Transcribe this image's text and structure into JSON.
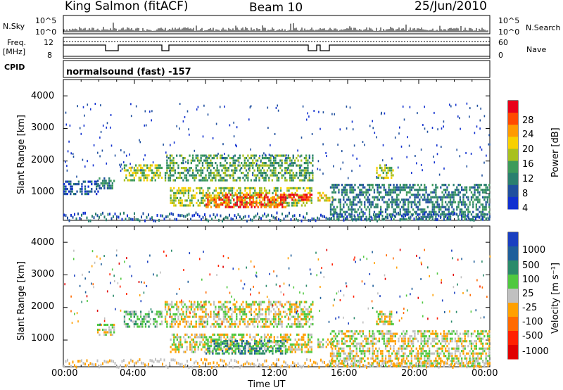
{
  "header": {
    "radar": "King Salmon (fitACF)",
    "beam": "Beam 10",
    "date": "25/Jun/2010"
  },
  "top_panels": {
    "nsky_label": "N.Sky",
    "nsky_ticks": [
      "10^5",
      "10^0"
    ],
    "nsearch_label": "N.Search",
    "nsearch_ticks": [
      "10^5",
      "10^0"
    ],
    "freq_label": "Freq.",
    "freq_unit": "[MHz]",
    "freq_ticks": [
      "12",
      "8"
    ],
    "nave_label": "Nave",
    "nave_ticks": [
      "60",
      "0"
    ],
    "cpid_label": "CPID",
    "cpid_text": "normalsound (fast) -157"
  },
  "chart_data": [
    {
      "type": "heatmap",
      "name": "power",
      "ylabel": "Slant Range [km]",
      "yticks": [
        "4000",
        "3000",
        "2000",
        "1000"
      ],
      "ylim": [
        180,
        4500
      ],
      "xlim": [
        0,
        24
      ],
      "colorbar": {
        "label": "Power [dB]",
        "ticks": [
          "28",
          "24",
          "20",
          "16",
          "12",
          "8",
          "4"
        ],
        "colors": [
          "#e8001a",
          "#ff4a00",
          "#ff9a00",
          "#f8d000",
          "#a8c020",
          "#3d9a5a",
          "#2a7f6e",
          "#1f4f9e",
          "#1030d0"
        ]
      },
      "echo_regions": [
        {
          "t": [
            1.9,
            2.9
          ],
          "r": [
            1150,
            1500
          ],
          "level": 2
        },
        {
          "t": [
            3.4,
            5.5
          ],
          "r": [
            1400,
            1900
          ],
          "level": 4
        },
        {
          "t": [
            5.7,
            14.0
          ],
          "r": [
            1400,
            2200
          ],
          "level": 3
        },
        {
          "t": [
            6.0,
            14.0
          ],
          "r": [
            600,
            1200
          ],
          "level": 4
        },
        {
          "t": [
            8.0,
            12.5
          ],
          "r": [
            600,
            1000
          ],
          "level": 7
        },
        {
          "t": [
            12.2,
            14.0
          ],
          "r": [
            800,
            1000
          ],
          "level": 8
        },
        {
          "t": [
            14.3,
            15.2
          ],
          "r": [
            750,
            1050
          ],
          "level": 5
        },
        {
          "t": [
            15.0,
            24.0
          ],
          "r": [
            180,
            1300
          ],
          "level": 2
        },
        {
          "t": [
            0.0,
            2.0
          ],
          "r": [
            1000,
            1400
          ],
          "level": 1
        },
        {
          "t": [
            17.6,
            18.6
          ],
          "r": [
            1500,
            1900
          ],
          "level": 4
        }
      ]
    },
    {
      "type": "heatmap",
      "name": "velocity",
      "xlabel": "Time UT",
      "ylabel": "Slant Range [km]",
      "yticks": [
        "4000",
        "3000",
        "2000",
        "1000"
      ],
      "xticks": [
        "00:00",
        "04:00",
        "08:00",
        "12:00",
        "16:00",
        "20:00",
        "00:00"
      ],
      "ylim": [
        180,
        4500
      ],
      "xlim": [
        0,
        24
      ],
      "colorbar": {
        "label": "Velocity [m s⁻¹]",
        "ticks": [
          "1000",
          "500",
          "100",
          "25",
          "-25",
          "-100",
          "-500",
          "-1000"
        ],
        "colors": [
          "#1a3fc0",
          "#1f5e9a",
          "#2a8a6a",
          "#50c840",
          "#c0c0c0",
          "#ffa000",
          "#ff6a00",
          "#ff2000",
          "#e00000"
        ]
      },
      "echo_regions": [
        {
          "t": [
            1.9,
            2.9
          ],
          "r": [
            1150,
            1500
          ],
          "level": 4
        },
        {
          "t": [
            3.4,
            5.5
          ],
          "r": [
            1400,
            1900
          ],
          "level": 5
        },
        {
          "t": [
            5.7,
            14.0
          ],
          "r": [
            1400,
            2200
          ],
          "level": 4
        },
        {
          "t": [
            6.0,
            14.0
          ],
          "r": [
            600,
            1200
          ],
          "level": 4
        },
        {
          "t": [
            8.0,
            12.5
          ],
          "r": [
            600,
            1000
          ],
          "level": 6
        },
        {
          "t": [
            14.3,
            15.2
          ],
          "r": [
            750,
            1050
          ],
          "level": 4
        },
        {
          "t": [
            15.0,
            24.0
          ],
          "r": [
            180,
            1300
          ],
          "level": 4
        },
        {
          "t": [
            17.6,
            18.6
          ],
          "r": [
            1500,
            1900
          ],
          "level": 4
        }
      ]
    }
  ]
}
